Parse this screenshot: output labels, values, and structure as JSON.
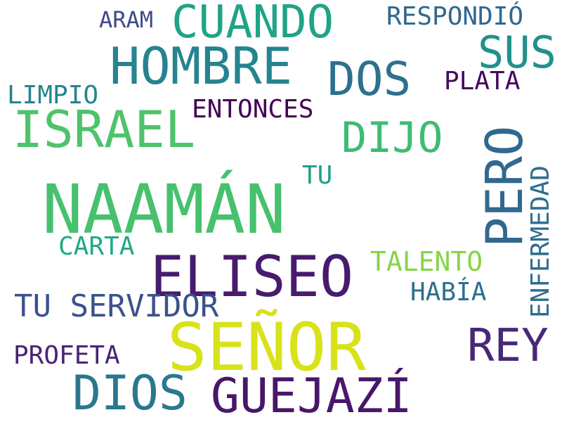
{
  "words": [
    {
      "id": "naaman",
      "text": "NAAMÁN",
      "color": "#47c16e"
    },
    {
      "id": "senor",
      "text": "SEÑOR",
      "color": "#d8e219"
    },
    {
      "id": "eliseo",
      "text": "ELISEO",
      "color": "#471b6e"
    },
    {
      "id": "hombre",
      "text": "HOMBRE",
      "color": "#26838f"
    },
    {
      "id": "israel",
      "text": "ISRAEL",
      "color": "#4ec36b"
    },
    {
      "id": "guejazi",
      "text": "GUEJAZÍ",
      "color": "#481769"
    },
    {
      "id": "dios",
      "text": "DIOS",
      "color": "#2a788e"
    },
    {
      "id": "cuando",
      "text": "CUANDO",
      "color": "#20a386"
    },
    {
      "id": "dos",
      "text": "DOS",
      "color": "#2c718e"
    },
    {
      "id": "pero",
      "text": "PERO",
      "color": "#31688e"
    },
    {
      "id": "rey",
      "text": "REY",
      "color": "#482878"
    },
    {
      "id": "sus",
      "text": "SUS",
      "color": "#21918c"
    },
    {
      "id": "dijo",
      "text": "DIJO",
      "color": "#3dbc74"
    },
    {
      "id": "tu-servidor",
      "text": "TU SERVIDOR",
      "color": "#3b528b"
    },
    {
      "id": "enfermedad",
      "text": "ENFERMEDAD",
      "color": "#2e6e8e"
    },
    {
      "id": "respondio",
      "text": "RESPONDIÓ",
      "color": "#31688e"
    },
    {
      "id": "entonces",
      "text": "ENTONCES",
      "color": "#440154"
    },
    {
      "id": "limpio",
      "text": "LIMPIO",
      "color": "#25858e"
    },
    {
      "id": "plata",
      "text": "PLATA",
      "color": "#46085c"
    },
    {
      "id": "talento",
      "text": "TALENTO",
      "color": "#86d549"
    },
    {
      "id": "habia",
      "text": "HABÍA",
      "color": "#2d708e"
    },
    {
      "id": "profeta",
      "text": "PROFETA",
      "color": "#482475"
    },
    {
      "id": "carta",
      "text": "CARTA",
      "color": "#22a884"
    },
    {
      "id": "aram",
      "text": "ARAM",
      "color": "#3e4a89"
    },
    {
      "id": "tu",
      "text": "TU",
      "color": "#1fa088"
    }
  ]
}
